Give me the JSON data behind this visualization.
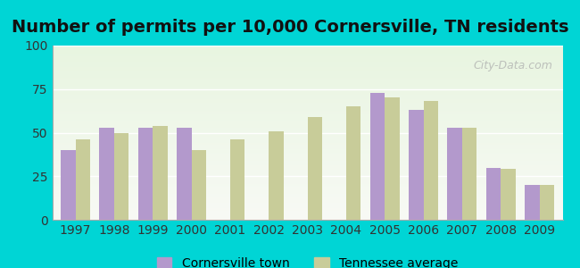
{
  "title": "Number of permits per 10,000 Cornersville, TN residents",
  "years": [
    1997,
    1998,
    1999,
    2000,
    2001,
    2002,
    2003,
    2004,
    2005,
    2006,
    2007,
    2008,
    2009
  ],
  "cornersville": [
    40,
    53,
    53,
    53,
    null,
    null,
    null,
    null,
    73,
    63,
    53,
    30,
    20
  ],
  "tennessee": [
    46,
    50,
    54,
    40,
    46,
    51,
    59,
    65,
    70,
    68,
    53,
    29,
    20
  ],
  "cornersville_color": "#b399cc",
  "tennessee_color": "#c8cc99",
  "background_color": "#00d5d5",
  "ylim": [
    0,
    100
  ],
  "yticks": [
    0,
    25,
    50,
    75,
    100
  ],
  "bar_width": 0.38,
  "legend_cornersville": "Cornersville town",
  "legend_tennessee": "Tennessee average",
  "watermark": "City-Data.com",
  "title_fontsize": 14,
  "tick_fontsize": 10,
  "legend_fontsize": 10
}
